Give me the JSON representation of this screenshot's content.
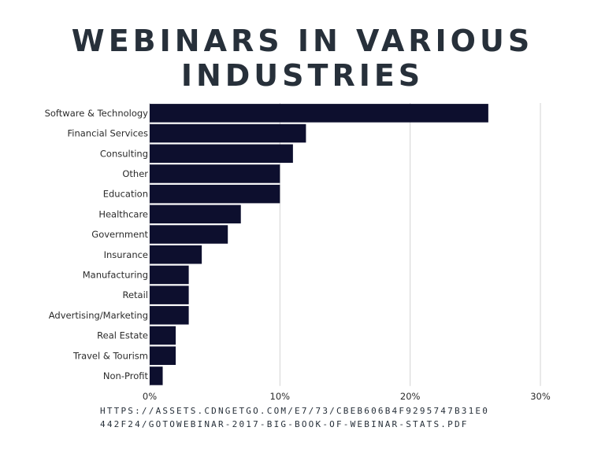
{
  "title_lines": [
    "WEBINARS IN VARIOUS",
    "INDUSTRIES"
  ],
  "source_lines": [
    "HTTPS://ASSETS.CDNGETGO.COM/E7/73/CBEB606B4F9295747B31E0",
    "442F24/GOTOWEBINAR-2017-BIG-BOOK-OF-WEBINAR-STATS.PDF"
  ],
  "colors": {
    "bar": "#0d0f2e",
    "grid": "#d3d3d3",
    "title": "#27303a"
  },
  "chart_data": {
    "type": "bar",
    "orientation": "horizontal",
    "title": "WEBINARS IN VARIOUS INDUSTRIES",
    "categories": [
      "Software & Technology",
      "Financial Services",
      "Consulting",
      "Other",
      "Education",
      "Healthcare",
      "Government",
      "Insurance",
      "Manufacturing",
      "Retail",
      "Advertising/Marketing",
      "Real Estate",
      "Travel & Tourism",
      "Non-Profit"
    ],
    "values": [
      26,
      12,
      11,
      10,
      10,
      7,
      6,
      4,
      3,
      3,
      3,
      2,
      2,
      1
    ],
    "xlim": [
      0,
      30
    ],
    "xticks": [
      0,
      10,
      20,
      30
    ],
    "xtick_labels": [
      "0%",
      "10%",
      "20%",
      "30%"
    ],
    "grid": true,
    "legend": "none"
  }
}
